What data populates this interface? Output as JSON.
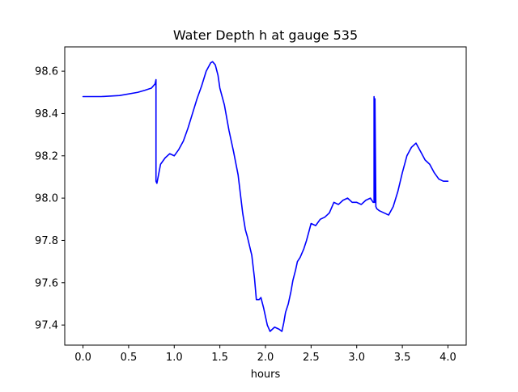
{
  "chart_data": {
    "type": "line",
    "title": "Water Depth h at gauge 535",
    "xlabel": "hours",
    "ylabel": "",
    "xlim": [
      -0.2,
      4.2
    ],
    "ylim": [
      97.305,
      98.715
    ],
    "xticks": [
      0.0,
      0.5,
      1.0,
      1.5,
      2.0,
      2.5,
      3.0,
      3.5,
      4.0
    ],
    "xtick_labels": [
      "0.0",
      "0.5",
      "1.0",
      "1.5",
      "2.0",
      "2.5",
      "3.0",
      "3.5",
      "4.0"
    ],
    "yticks": [
      97.4,
      97.6,
      97.8,
      98.0,
      98.2,
      98.4,
      98.6
    ],
    "ytick_labels": [
      "97.4",
      "97.6",
      "97.8",
      "98.0",
      "98.2",
      "98.4",
      "98.6"
    ],
    "grid": false,
    "series": [
      {
        "color": "#0000ff",
        "x": [
          0.0,
          0.2,
          0.4,
          0.6,
          0.68,
          0.75,
          0.79,
          0.8,
          0.8,
          0.81,
          0.85,
          0.9,
          0.95,
          1.0,
          1.05,
          1.1,
          1.15,
          1.2,
          1.25,
          1.3,
          1.35,
          1.4,
          1.42,
          1.45,
          1.48,
          1.5,
          1.55,
          1.6,
          1.65,
          1.7,
          1.75,
          1.78,
          1.8,
          1.85,
          1.88,
          1.9,
          1.93,
          1.95,
          1.98,
          2.0,
          2.02,
          2.05,
          2.1,
          2.15,
          2.18,
          2.2,
          2.22,
          2.25,
          2.28,
          2.3,
          2.33,
          2.35,
          2.38,
          2.4,
          2.42,
          2.45,
          2.5,
          2.55,
          2.6,
          2.65,
          2.7,
          2.75,
          2.8,
          2.85,
          2.9,
          2.95,
          3.0,
          3.05,
          3.1,
          3.15,
          3.18,
          3.19,
          3.19,
          3.2,
          3.2,
          3.21,
          3.21,
          3.22,
          3.25,
          3.3,
          3.35,
          3.4,
          3.45,
          3.5,
          3.55,
          3.6,
          3.65,
          3.7,
          3.75,
          3.8,
          3.85,
          3.9,
          3.95,
          4.0
        ],
        "y": [
          98.48,
          98.48,
          98.485,
          98.5,
          98.51,
          98.52,
          98.54,
          98.56,
          98.08,
          98.07,
          98.16,
          98.19,
          98.21,
          98.2,
          98.23,
          98.27,
          98.33,
          98.4,
          98.47,
          98.53,
          98.6,
          98.64,
          98.645,
          98.63,
          98.58,
          98.52,
          98.44,
          98.32,
          98.22,
          98.11,
          97.93,
          97.85,
          97.82,
          97.73,
          97.62,
          97.52,
          97.52,
          97.53,
          97.48,
          97.44,
          97.4,
          97.37,
          97.39,
          97.38,
          97.37,
          97.41,
          97.46,
          97.5,
          97.56,
          97.61,
          97.66,
          97.7,
          97.72,
          97.74,
          97.76,
          97.8,
          97.88,
          97.87,
          97.9,
          97.91,
          97.93,
          97.98,
          97.97,
          97.99,
          98.0,
          97.98,
          97.98,
          97.97,
          97.99,
          98.0,
          97.98,
          97.98,
          98.48,
          97.98,
          98.47,
          97.96,
          97.96,
          97.95,
          97.94,
          97.93,
          97.92,
          97.96,
          98.03,
          98.12,
          98.2,
          98.24,
          98.26,
          98.22,
          98.18,
          98.16,
          98.12,
          98.09,
          98.08,
          98.08
        ]
      }
    ]
  }
}
